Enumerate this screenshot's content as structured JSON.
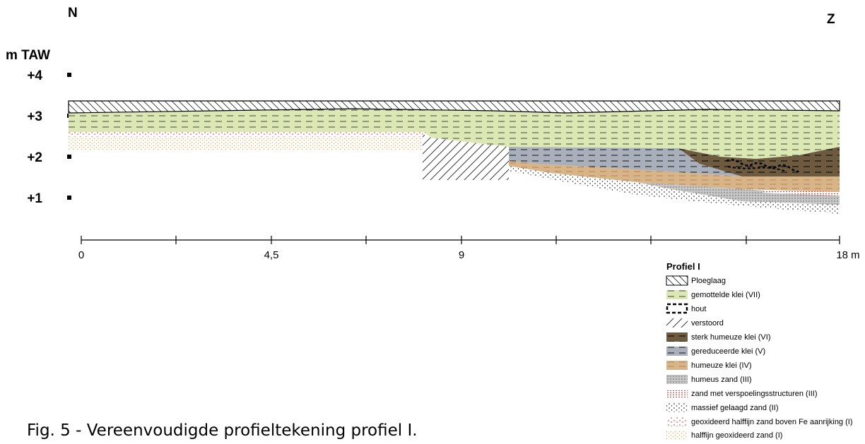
{
  "header": {
    "north": "N",
    "south": "Z",
    "unit": "m TAW"
  },
  "elevations": [
    "+4",
    "+3",
    "+2",
    "+1"
  ],
  "distances": [
    "0",
    "4,5",
    "9",
    "18 m"
  ],
  "legend": {
    "title": "Profiel I",
    "items": [
      "Ploeglaag",
      "gemottelde klei (VII)",
      "hout",
      "verstoord",
      "sterk humeuze klei (VI)",
      "gereduceerde klei (V)",
      "humeuze klei (IV)",
      "humeus zand (III)",
      "zand met verspoelingsstructuren (III)",
      "massief gelaagd zand (II)",
      "geoxideerd halffijn zand boven Fe aanrijking (I)",
      "halffijn geoxideerd zand (I)"
    ]
  },
  "caption": "Fig. 5 - Vereenvoudigde profieltekening profiel I."
}
